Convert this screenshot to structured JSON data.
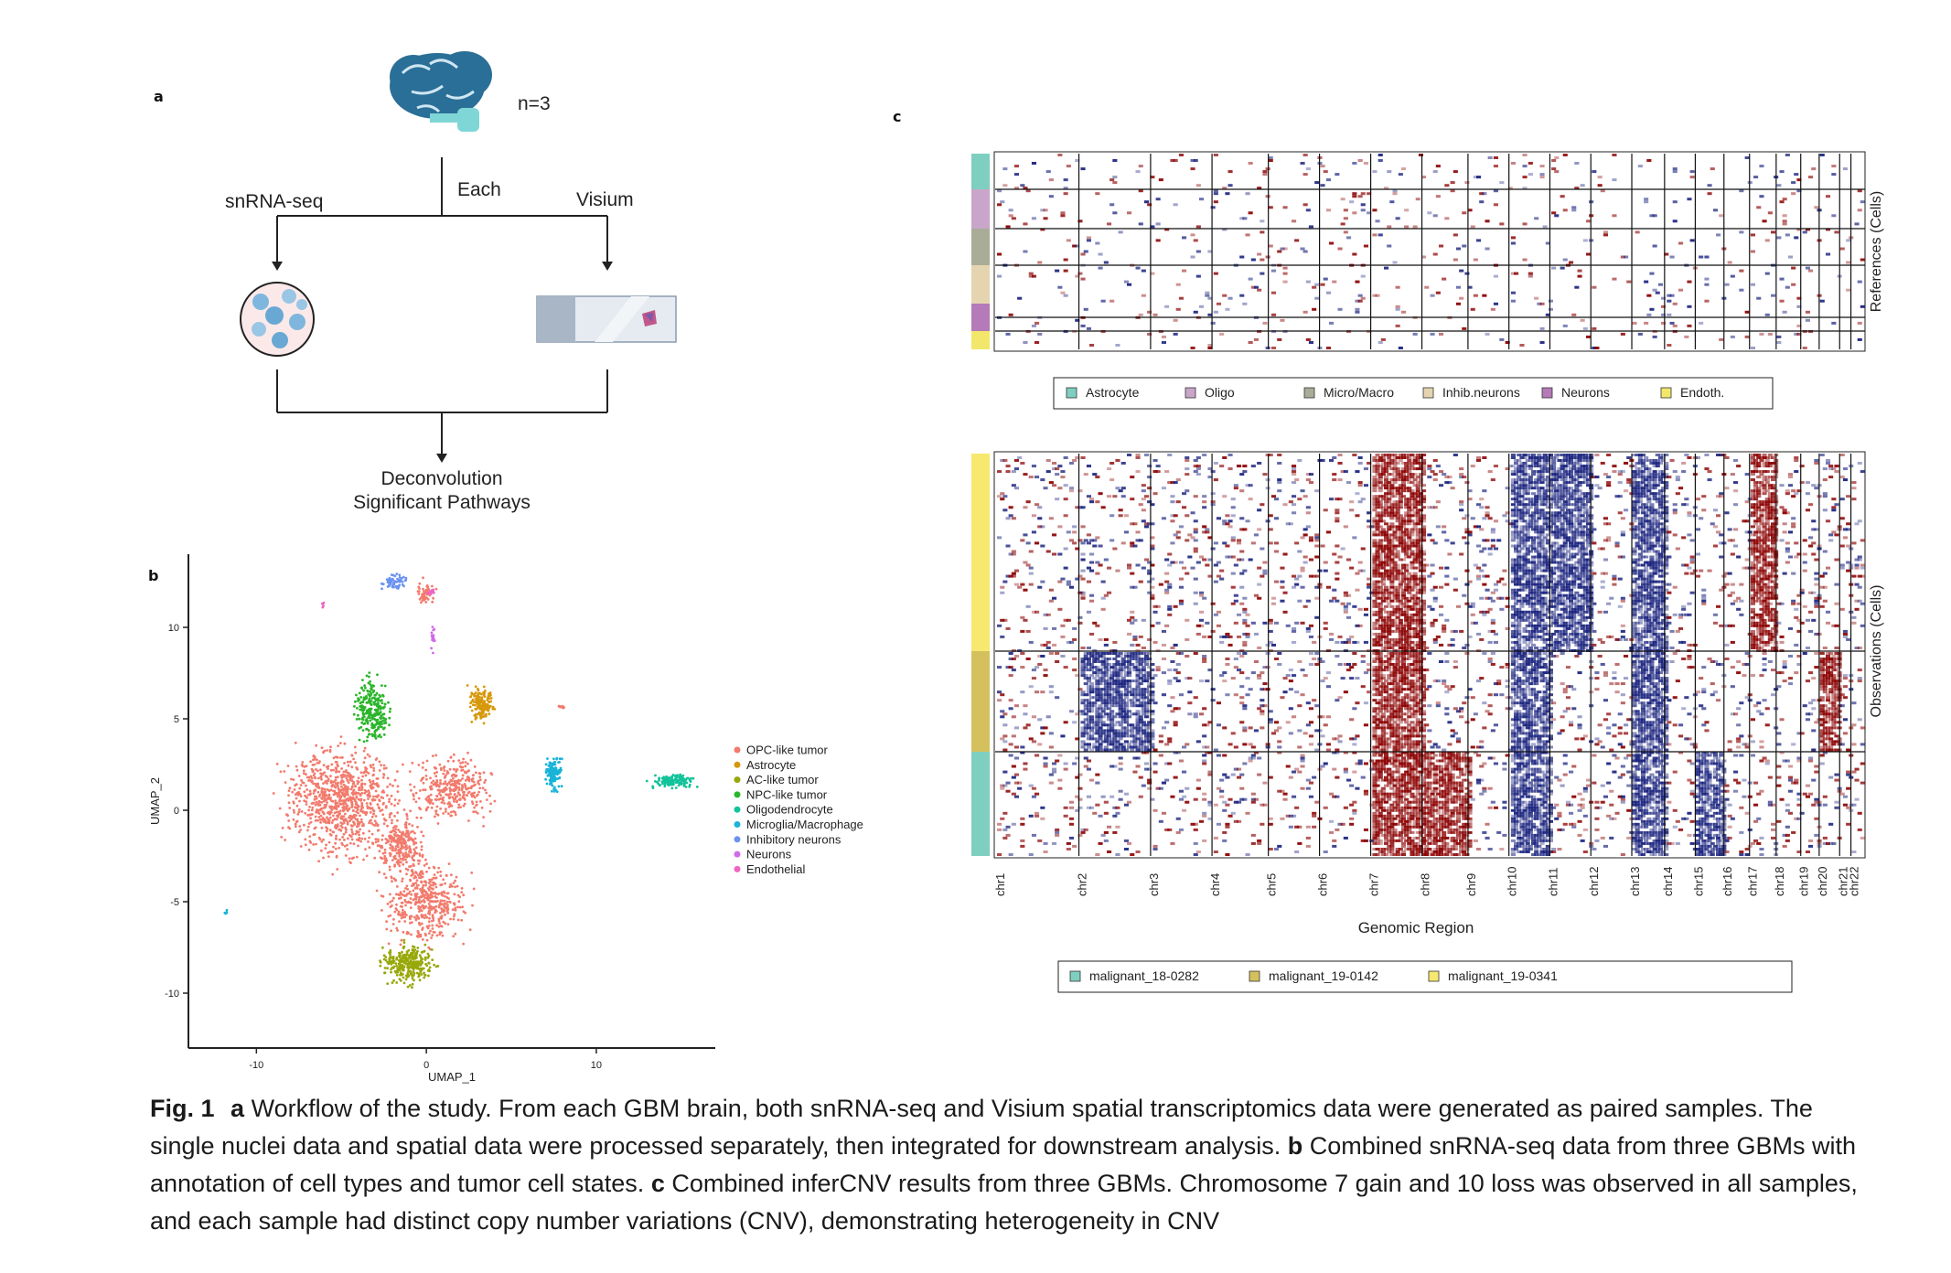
{
  "panel_a": {
    "label": "a",
    "n_text": "n=3",
    "each_label": "Each",
    "left_branch": "snRNA-seq",
    "right_branch": "Visium",
    "result_line1": "Deconvolution",
    "result_line2": "Significant Pathways",
    "icons": [
      "brain-icon",
      "nuclei-dish-icon",
      "visium-slide-icon"
    ],
    "brain_color": "#2a6f97"
  },
  "panel_b": {
    "label": "b",
    "chart_data": {
      "type": "scatter",
      "xlabel": "UMAP_1",
      "ylabel": "UMAP_2",
      "xticks": [
        -10,
        0,
        10
      ],
      "yticks": [
        10,
        5,
        0,
        -5,
        -10
      ],
      "xlim": [
        -14,
        17
      ],
      "ylim": [
        -13,
        14
      ],
      "legend_position": "right",
      "series": [
        {
          "name": "OPC-like tumor",
          "color": "#f27b6d"
        },
        {
          "name": "Astrocyte",
          "color": "#d6980a"
        },
        {
          "name": "AC-like tumor",
          "color": "#98a80b"
        },
        {
          "name": "NPC-like tumor",
          "color": "#2ab52a"
        },
        {
          "name": "Oligodendrocyte",
          "color": "#12c29a"
        },
        {
          "name": "Microglia/Macrophage",
          "color": "#19b4d8"
        },
        {
          "name": "Inhibitory neurons",
          "color": "#6b92f0"
        },
        {
          "name": "Neurons",
          "color": "#d06be8"
        },
        {
          "name": "Endothelial",
          "color": "#f065c2"
        }
      ]
    }
  },
  "panel_c": {
    "label": "c",
    "chart_data": {
      "type": "heatmap",
      "xlabel": "Genomic Region",
      "references_label": "References (Cells)",
      "observations_label": "Observations (Cells)",
      "chromosomes": [
        "chr1",
        "chr2",
        "chr3",
        "chr4",
        "chr5",
        "chr6",
        "chr7",
        "chr8",
        "chr9",
        "chr10",
        "chr11",
        "chr12",
        "chr13",
        "chr14",
        "chr15",
        "chr16",
        "chr17",
        "chr18",
        "chr19",
        "chr20",
        "chr21",
        "chr22"
      ],
      "reference_legend": [
        {
          "name": "Astrocyte",
          "color": "#7fcfc1"
        },
        {
          "name": "Oligo",
          "color": "#c9a6c9"
        },
        {
          "name": "Micro/Macro",
          "color": "#a9ac97"
        },
        {
          "name": "Inhib.neurons",
          "color": "#e4d4b0"
        },
        {
          "name": "Neurons",
          "color": "#b57ab8"
        },
        {
          "name": "Endoth.",
          "color": "#f2e76a"
        }
      ],
      "observation_legend": [
        {
          "name": "malignant_18-0282",
          "color": "#7fcfc1"
        },
        {
          "name": "malignant_19-0142",
          "color": "#d4c15e"
        },
        {
          "name": "malignant_19-0341",
          "color": "#f7e870"
        }
      ],
      "gain_color": "#8b0000",
      "loss_color": "#1a237e"
    }
  },
  "caption": {
    "fig_label": "Fig. 1",
    "a_tag": "a",
    "a_text": "Workflow of the study. From each GBM brain, both snRNA-seq and Visium spatial transcriptomics data were generated as paired samples. The single nuclei data and spatial data were processed separately, then integrated for downstream analysis.",
    "b_tag": "b",
    "b_text": "Combined snRNA-seq data from three GBMs with annotation of cell types and tumor cell states.",
    "c_tag": "c",
    "c_text": "Combined inferCNV results from three GBMs. Chromosome 7 gain and 10 loss was observed in all samples, and each sample had distinct copy number variations (CNV), demonstrating heterogeneity in CNV"
  }
}
